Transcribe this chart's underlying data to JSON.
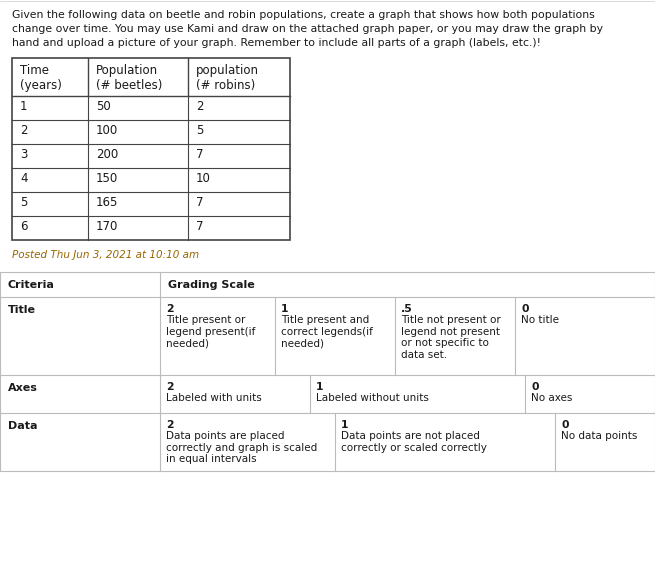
{
  "description_lines": [
    "Given the following data on beetle and robin populations, create a graph that shows how both populations",
    "change over time. You may use Kami and draw on the attached graph paper, or you may draw the graph by",
    "hand and upload a picture of your graph. Remember to include all parts of a graph (labels, etc.)!"
  ],
  "table_headers": [
    "Time\n(years)",
    "Population\n(# beetles)",
    "population\n(# robins)"
  ],
  "table_data": [
    [
      "1",
      "50",
      "2"
    ],
    [
      "2",
      "100",
      "5"
    ],
    [
      "3",
      "200",
      "7"
    ],
    [
      "4",
      "150",
      "10"
    ],
    [
      "5",
      "165",
      "7"
    ],
    [
      "6",
      "170",
      "7"
    ]
  ],
  "timestamp": "Posted Thu Jun 3, 2021 at 10:10 am",
  "rubric_header_cols": [
    "Criteria",
    "Grading Scale"
  ],
  "rubric_rows": [
    {
      "criteria": "Title",
      "cols": [
        {
          "score": "2",
          "text": "Title present or\nlegend present(if\nneeded)"
        },
        {
          "score": "1",
          "text": "Title present and\ncorrect legends(if\nneeded)"
        },
        {
          "score": ".5",
          "text": "Title not present or\nlegend not present\nor not specific to\ndata set."
        },
        {
          "score": "0",
          "text": "No title"
        }
      ]
    },
    {
      "criteria": "Axes",
      "cols": [
        {
          "score": "2",
          "text": "Labeled with units"
        },
        {
          "score": "1",
          "text": "Labeled without units"
        },
        {
          "score": "0",
          "text": "No axes"
        }
      ]
    },
    {
      "criteria": "Data",
      "cols": [
        {
          "score": "2",
          "text": "Data points are placed\ncorrectly and graph is scaled\nin equal intervals"
        },
        {
          "score": "1",
          "text": "Data points are not placed\ncorrectly or scaled correctly"
        },
        {
          "score": "0",
          "text": "No data points"
        }
      ]
    }
  ],
  "bg_color": "#ffffff",
  "text_color": "#1a1a1a",
  "table_border": "#444444",
  "rubric_border": "#bbbbbb",
  "timestamp_color": "#996600",
  "desc_fontsize": 7.8,
  "table_header_fontsize": 8.5,
  "table_data_fontsize": 8.5,
  "rubric_fontsize": 7.5,
  "fig_width": 6.55,
  "fig_height": 5.8,
  "dpi": 100
}
